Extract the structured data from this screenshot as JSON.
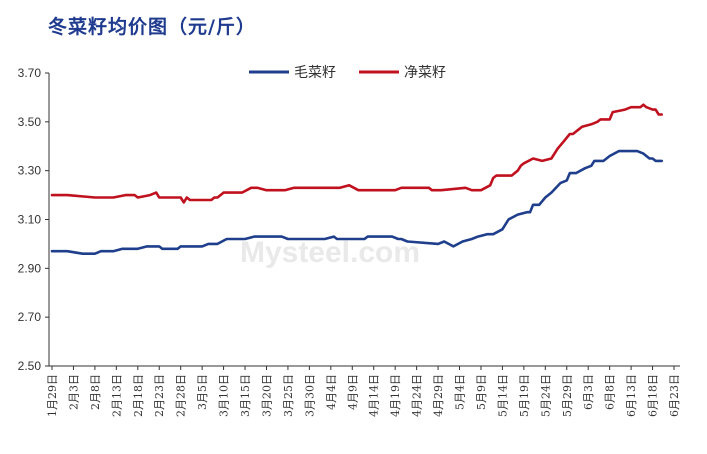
{
  "chart_data": {
    "type": "line",
    "title": "冬菜籽均价图（元/斤）",
    "ylim": [
      2.5,
      3.7
    ],
    "yticks": [
      "2.50",
      "2.70",
      "2.90",
      "3.10",
      "3.30",
      "3.50",
      "3.70"
    ],
    "legend_position": "top-center",
    "grid": false,
    "x_tick_labels": [
      "1月29日",
      "2月3日",
      "2月8日",
      "2月13日",
      "2月18日",
      "2月23日",
      "2月28日",
      "3月5日",
      "3月10日",
      "3月15日",
      "3月20日",
      "3月25日",
      "3月30日",
      "4月4日",
      "4月9日",
      "4月14日",
      "4月19日",
      "4月24日",
      "4月29日",
      "5月4日",
      "5月9日",
      "5月14日",
      "5月19日",
      "5月24日",
      "5月29日",
      "6月3日",
      "6月8日",
      "6月13日",
      "6月18日",
      "6月23日"
    ],
    "series": [
      {
        "name": "毛菜籽",
        "color": "#1f3f8c",
        "points": [
          [
            0,
            2.97
          ],
          [
            5,
            2.97
          ],
          [
            10,
            2.96
          ],
          [
            14,
            2.96
          ],
          [
            16,
            2.97
          ],
          [
            20,
            2.97
          ],
          [
            23,
            2.98
          ],
          [
            28,
            2.98
          ],
          [
            31,
            2.99
          ],
          [
            35,
            2.99
          ],
          [
            36,
            2.98
          ],
          [
            41,
            2.98
          ],
          [
            42,
            2.99
          ],
          [
            49,
            2.99
          ],
          [
            51,
            3.0
          ],
          [
            54,
            3.0
          ],
          [
            57,
            3.02
          ],
          [
            63,
            3.02
          ],
          [
            66,
            3.03
          ],
          [
            75,
            3.03
          ],
          [
            77,
            3.02
          ],
          [
            89,
            3.02
          ],
          [
            92,
            3.03
          ],
          [
            93,
            3.02
          ],
          [
            102,
            3.02
          ],
          [
            103,
            3.03
          ],
          [
            111,
            3.03
          ],
          [
            113,
            3.02
          ],
          [
            114,
            3.02
          ],
          [
            116,
            3.01
          ],
          [
            126,
            3.0
          ],
          [
            128,
            3.01
          ],
          [
            131,
            2.99
          ],
          [
            134,
            3.01
          ],
          [
            137,
            3.02
          ],
          [
            139,
            3.03
          ],
          [
            142,
            3.04
          ],
          [
            144,
            3.04
          ],
          [
            147,
            3.06
          ],
          [
            149,
            3.1
          ],
          [
            152,
            3.12
          ],
          [
            155,
            3.13
          ],
          [
            156,
            3.13
          ],
          [
            157,
            3.16
          ],
          [
            159,
            3.16
          ],
          [
            161,
            3.19
          ],
          [
            163,
            3.21
          ],
          [
            166,
            3.25
          ],
          [
            168,
            3.26
          ],
          [
            169,
            3.29
          ],
          [
            171,
            3.29
          ],
          [
            174,
            3.31
          ],
          [
            176,
            3.32
          ],
          [
            177,
            3.34
          ],
          [
            180,
            3.34
          ],
          [
            182,
            3.36
          ],
          [
            185,
            3.38
          ],
          [
            191,
            3.38
          ],
          [
            193,
            3.37
          ],
          [
            195,
            3.35
          ],
          [
            196,
            3.35
          ],
          [
            197,
            3.34
          ],
          [
            199,
            3.34
          ]
        ]
      },
      {
        "name": "净菜籽",
        "color": "#c0111f",
        "points": [
          [
            0,
            3.2
          ],
          [
            5,
            3.2
          ],
          [
            14,
            3.19
          ],
          [
            20,
            3.19
          ],
          [
            24,
            3.2
          ],
          [
            27,
            3.2
          ],
          [
            28,
            3.19
          ],
          [
            32,
            3.2
          ],
          [
            34,
            3.21
          ],
          [
            35,
            3.19
          ],
          [
            42,
            3.19
          ],
          [
            43,
            3.17
          ],
          [
            44,
            3.19
          ],
          [
            45,
            3.18
          ],
          [
            52,
            3.18
          ],
          [
            53,
            3.19
          ],
          [
            54,
            3.19
          ],
          [
            56,
            3.21
          ],
          [
            62,
            3.21
          ],
          [
            65,
            3.23
          ],
          [
            67,
            3.23
          ],
          [
            70,
            3.22
          ],
          [
            76,
            3.22
          ],
          [
            79,
            3.23
          ],
          [
            94,
            3.23
          ],
          [
            97,
            3.24
          ],
          [
            100,
            3.22
          ],
          [
            112,
            3.22
          ],
          [
            114,
            3.23
          ],
          [
            123,
            3.23
          ],
          [
            124,
            3.22
          ],
          [
            127,
            3.22
          ],
          [
            135,
            3.23
          ],
          [
            137,
            3.22
          ],
          [
            140,
            3.22
          ],
          [
            143,
            3.24
          ],
          [
            144,
            3.27
          ],
          [
            145,
            3.28
          ],
          [
            150,
            3.28
          ],
          [
            152,
            3.3
          ],
          [
            153,
            3.32
          ],
          [
            154,
            3.33
          ],
          [
            157,
            3.35
          ],
          [
            160,
            3.34
          ],
          [
            163,
            3.35
          ],
          [
            165,
            3.39
          ],
          [
            167,
            3.42
          ],
          [
            169,
            3.45
          ],
          [
            170,
            3.45
          ],
          [
            172,
            3.47
          ],
          [
            173,
            3.48
          ],
          [
            176,
            3.49
          ],
          [
            178,
            3.5
          ],
          [
            179,
            3.51
          ],
          [
            182,
            3.51
          ],
          [
            183,
            3.54
          ],
          [
            187,
            3.55
          ],
          [
            189,
            3.56
          ],
          [
            192,
            3.56
          ],
          [
            193,
            3.57
          ],
          [
            194,
            3.56
          ],
          [
            196,
            3.55
          ],
          [
            197,
            3.55
          ],
          [
            198,
            3.53
          ],
          [
            199,
            3.53
          ]
        ]
      }
    ],
    "watermark": "Mysteel.com"
  }
}
